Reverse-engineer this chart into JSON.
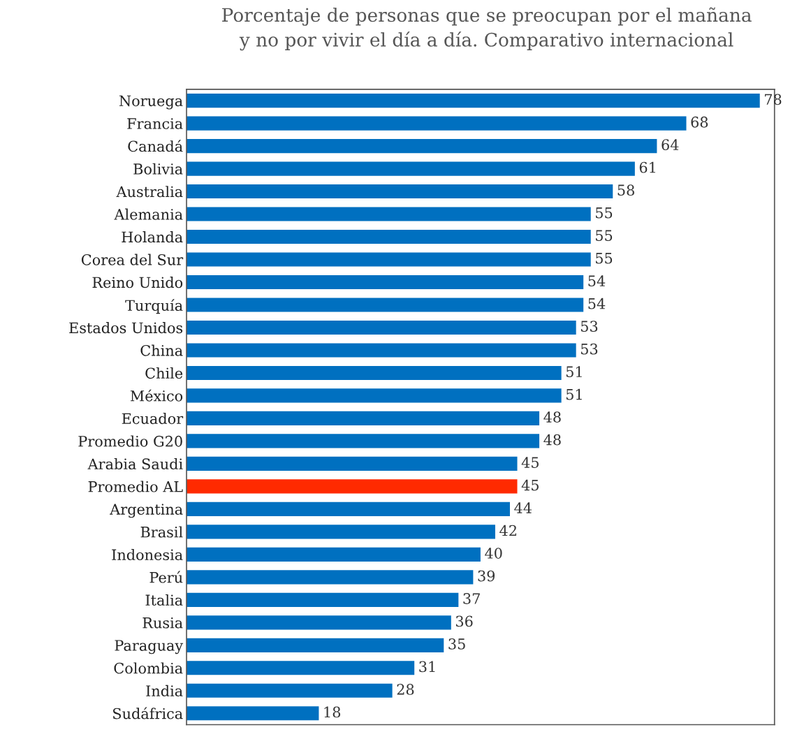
{
  "chart_data": {
    "type": "bar",
    "orientation": "horizontal",
    "title": "Porcentaje de personas que se preocupan por el mañana\ny no por vivir el día a día. Comparativo internacional",
    "categories": [
      "Noruega",
      "Francia",
      "Canadá",
      "Bolivia",
      "Australia",
      "Alemania",
      "Holanda",
      "Corea del Sur",
      "Reino Unido",
      "Turquía",
      "Estados Unidos",
      "China",
      "Chile",
      "México",
      "Ecuador",
      "Promedio G20",
      "Arabia Saudi",
      "Promedio AL",
      "Argentina",
      "Brasil",
      "Indonesia",
      "Perú",
      "Italia",
      "Rusia",
      "Paraguay",
      "Colombia",
      "India",
      "Sudáfrica"
    ],
    "values": [
      78,
      68,
      64,
      61,
      58,
      55,
      55,
      55,
      54,
      54,
      53,
      53,
      51,
      51,
      48,
      48,
      45,
      45,
      44,
      42,
      40,
      39,
      37,
      36,
      35,
      31,
      28,
      18
    ],
    "colors": [
      "#0070c0",
      "#0070c0",
      "#0070c0",
      "#0070c0",
      "#0070c0",
      "#0070c0",
      "#0070c0",
      "#0070c0",
      "#0070c0",
      "#0070c0",
      "#0070c0",
      "#0070c0",
      "#0070c0",
      "#0070c0",
      "#0070c0",
      "#0070c0",
      "#0070c0",
      "#ff2a00",
      "#0070c0",
      "#0070c0",
      "#0070c0",
      "#0070c0",
      "#0070c0",
      "#0070c0",
      "#0070c0",
      "#0070c0",
      "#0070c0",
      "#0070c0"
    ],
    "xlim": [
      0,
      80
    ],
    "data_labels": true,
    "tick_labels": "y",
    "grid": false,
    "legend": false
  }
}
